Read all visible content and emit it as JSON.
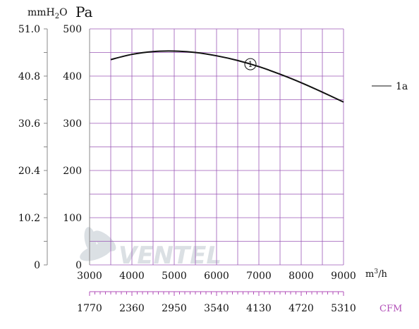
{
  "chart_data": {
    "type": "line",
    "x_unit": "m³/h",
    "y_unit_pa": "Pa",
    "y_unit_mmh2o": "mmH2O",
    "x2_unit": "CFM",
    "xlim": [
      3000,
      9000
    ],
    "ylim": [
      0,
      500
    ],
    "x_ticks": [
      "3000",
      "4000",
      "5000",
      "6000",
      "7000",
      "8000",
      "9000"
    ],
    "y_ticks": [
      "0",
      "100",
      "200",
      "300",
      "400",
      "500"
    ],
    "y2_ticks": [
      "0",
      "10.2",
      "20.4",
      "30.6",
      "40.8",
      "51.0"
    ],
    "x2_ticks": [
      "1770",
      "2360",
      "2950",
      "3540",
      "4130",
      "4720",
      "5310"
    ],
    "grid": true,
    "legend_label": "1a",
    "legend_position": "right",
    "watermark": "VENTEL",
    "series": [
      {
        "name": "1a",
        "marker_label": "①",
        "x": [
          3500,
          4000,
          4500,
          5000,
          5500,
          6000,
          6500,
          7000,
          7500,
          8000,
          8500,
          9000
        ],
        "y": [
          435,
          446,
          452,
          453,
          450,
          443,
          433,
          420,
          404,
          386,
          366,
          345
        ]
      }
    ],
    "colors": {
      "grid": "#9b59b6",
      "axis": "#888888",
      "curve": "#111111",
      "cfm": "#b24fb8"
    }
  }
}
